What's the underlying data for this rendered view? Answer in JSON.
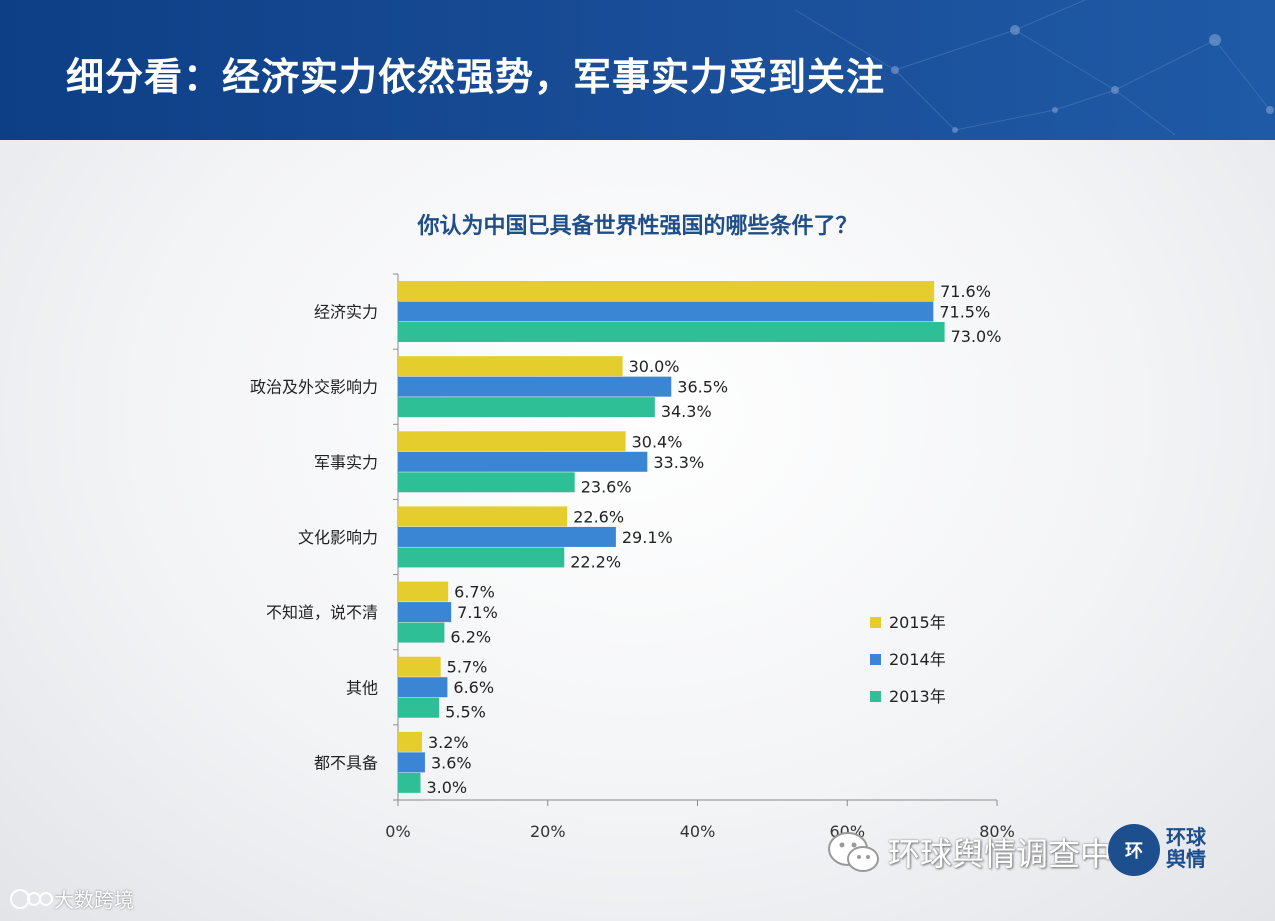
{
  "header": {
    "title": "细分看：经济实力依然强势，军事实力受到关注"
  },
  "chart_data": {
    "type": "bar",
    "orientation": "horizontal",
    "title": "你认为中国已具备世界性强国的哪些条件了？",
    "categories": [
      "经济实力",
      "政治及外交影响力",
      "军事实力",
      "文化影响力",
      "不知道，说不清",
      "其他",
      "都不具备"
    ],
    "series": [
      {
        "name": "2015年",
        "color": "#e6cd2e",
        "values": [
          71.6,
          30.0,
          30.4,
          22.6,
          6.7,
          5.7,
          3.2
        ]
      },
      {
        "name": "2014年",
        "color": "#3a86d4",
        "values": [
          71.5,
          36.5,
          33.3,
          29.1,
          7.1,
          6.6,
          3.6
        ]
      },
      {
        "name": "2013年",
        "color": "#2ebf97",
        "values": [
          73.0,
          34.3,
          23.6,
          22.2,
          6.2,
          5.5,
          3.0
        ]
      }
    ],
    "xlim": [
      0,
      80
    ],
    "xticks": [
      0,
      20,
      40,
      60,
      80
    ],
    "tick_suffix": "%",
    "legend_position": "right-middle",
    "grid": false
  },
  "footer": {
    "wechat_text": "环球舆情调查中心",
    "logo_badge": "环",
    "logo_text": "环球舆情",
    "brand": "大数跨境"
  }
}
